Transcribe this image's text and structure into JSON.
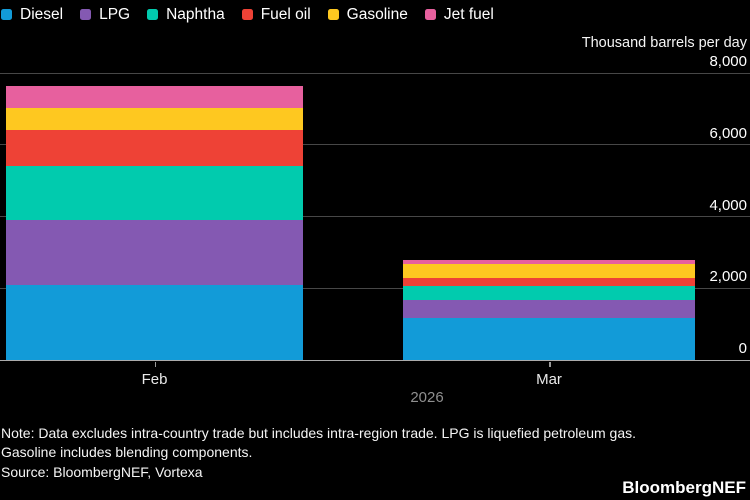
{
  "header": {
    "unit_label": "Thousand barrels per day"
  },
  "chart_data": {
    "type": "bar",
    "stacked": true,
    "title": "",
    "xlabel": "2026",
    "ylabel": "Thousand barrels per day",
    "ylim": [
      0,
      8000
    ],
    "grid": "horizontal",
    "legend_position": "top",
    "categories": [
      "Feb",
      "Mar"
    ],
    "year_label": "2026",
    "series": [
      {
        "name": "Diesel",
        "color": "#129bd8",
        "values": [
          2100,
          1180
        ]
      },
      {
        "name": "LPG",
        "color": "#8459b2",
        "values": [
          1810,
          500
        ]
      },
      {
        "name": "Naphtha",
        "color": "#01cbae",
        "values": [
          1510,
          370
        ]
      },
      {
        "name": "Fuel oil",
        "color": "#ee4236",
        "values": [
          990,
          235
        ]
      },
      {
        "name": "Gasoline",
        "color": "#fec820",
        "values": [
          620,
          400
        ]
      },
      {
        "name": "Jet fuel",
        "color": "#e7609e",
        "values": [
          600,
          110
        ]
      }
    ],
    "totals": [
      7630,
      2795
    ],
    "y_ticks": [
      {
        "value": 8000,
        "label": "8,000"
      },
      {
        "value": 6000,
        "label": "6,000"
      },
      {
        "value": 4000,
        "label": "4,000"
      },
      {
        "value": 2000,
        "label": "2,000"
      },
      {
        "value": 0,
        "label": "0"
      }
    ]
  },
  "footer": {
    "note_lines": [
      "Note: Data excludes intra-country trade but includes intra-region trade. LPG is liquefied petroleum gas.",
      "Gasoline includes blending components."
    ],
    "source": "Source: BloombergNEF, Vortexa",
    "brand": "BloombergNEF"
  },
  "colors": {
    "background": "#000000",
    "gridline": "#474747",
    "baseline": "#ababab",
    "tick_mark": "#9a9a9a",
    "axis_text": "#ffffff",
    "year_text": "#8f8f8f"
  }
}
